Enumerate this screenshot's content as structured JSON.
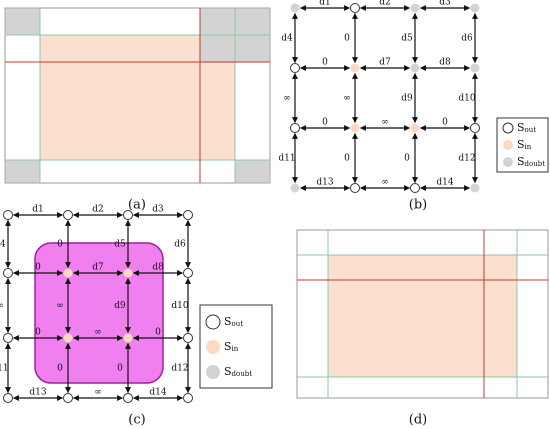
{
  "captions": [
    "(a)",
    "(b)",
    "(c)",
    "(d)"
  ],
  "graph": {
    "horizontal_edges": [
      [
        "d1",
        "d2",
        "d3"
      ],
      [
        "0",
        "d7",
        "d8"
      ],
      [
        "0",
        "∞",
        "0"
      ],
      [
        "d13",
        "∞",
        "d14"
      ]
    ],
    "vertical_edges": [
      [
        "d4",
        "0",
        "d5",
        "d6"
      ],
      [
        "∞",
        "∞",
        "d9",
        "d10"
      ],
      [
        "d11",
        "0",
        "0",
        "d12"
      ]
    ]
  },
  "panel_b_nodes": [
    [
      "doubt",
      "out",
      "doubt",
      "doubt"
    ],
    [
      "out",
      "in",
      "doubt",
      "doubt"
    ],
    [
      "out",
      "in",
      "in",
      "out"
    ],
    [
      "doubt",
      "out",
      "out",
      "doubt"
    ]
  ],
  "panel_c_nodes": [
    [
      "out",
      "out",
      "out",
      "out"
    ],
    [
      "out",
      "in",
      "in",
      "out"
    ],
    [
      "out",
      "in",
      "in",
      "out"
    ],
    [
      "out",
      "out",
      "out",
      "out"
    ]
  ],
  "legend": [
    {
      "type": "out",
      "symbol": "S",
      "subscript": "out"
    },
    {
      "type": "in",
      "symbol": "S",
      "subscript": "in"
    },
    {
      "type": "doubt",
      "symbol": "S",
      "subscript": "doubt"
    }
  ]
}
